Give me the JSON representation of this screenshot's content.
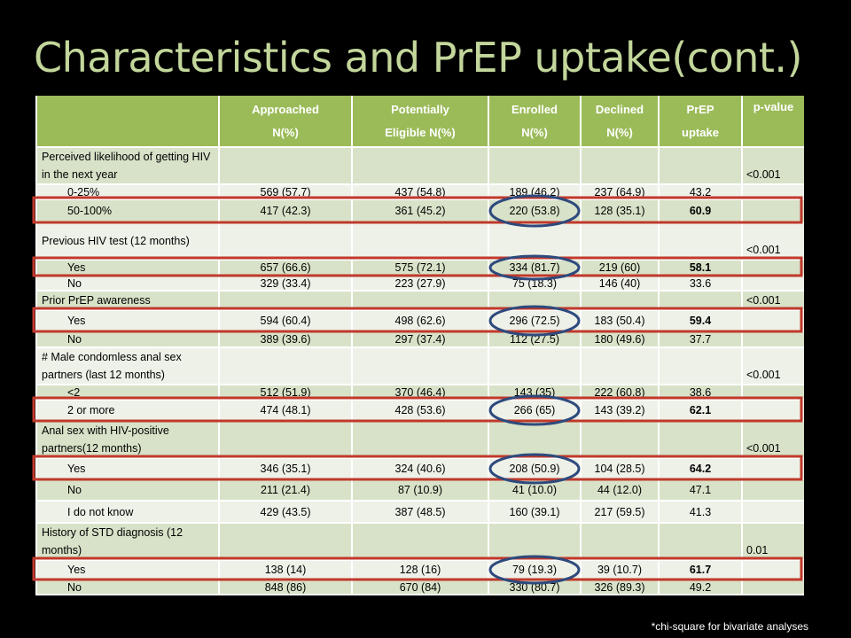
{
  "title": "Characteristics and PrEP uptake(cont.)",
  "footnote": "*chi-square for bivariate analyses",
  "table": {
    "headers": [
      {
        "line1": "",
        "line2": ""
      },
      {
        "line1": "Approached",
        "line2": "N(%)"
      },
      {
        "line1": "Potentially",
        "line2": "Eligible N(%)"
      },
      {
        "line1": "Enrolled",
        "line2": "N(%)"
      },
      {
        "line1": "Declined",
        "line2": "N(%)"
      },
      {
        "line1": "PrEP",
        "line2": "uptake"
      },
      {
        "line1": "p-value",
        "line2": ""
      }
    ],
    "rows": [
      {
        "type": "section",
        "label": "Perceived likelihood of getting HIV in the next year",
        "pvalue": "<0.001"
      },
      {
        "type": "data",
        "label": "0-25%",
        "approached": "569 (57.7)",
        "eligible": "437 (54.8)",
        "enrolled": "189 (46.2)",
        "declined": "237 (64.9)",
        "uptake": "43.2",
        "highlight": false
      },
      {
        "type": "data",
        "label": "50-100%",
        "approached": "417 (42.3)",
        "eligible": "361 (45.2)",
        "enrolled": "220 (53.8)",
        "declined": "128 (35.1)",
        "uptake": "60.9",
        "highlight": true
      },
      {
        "type": "section",
        "label": "Previous HIV test (12 months)",
        "pvalue": "<0.001"
      },
      {
        "type": "data",
        "label": "Yes",
        "approached": "657 (66.6)",
        "eligible": "575 (72.1)",
        "enrolled": "334 (81.7)",
        "declined": "219 (60)",
        "uptake": "58.1",
        "highlight": true
      },
      {
        "type": "data",
        "label": "No",
        "approached": "329 (33.4)",
        "eligible": "223 (27.9)",
        "enrolled": "75 (18.3)",
        "declined": "146 (40)",
        "uptake": "33.6",
        "highlight": false
      },
      {
        "type": "section",
        "label": "Prior PrEP awareness",
        "pvalue": "<0.001"
      },
      {
        "type": "data",
        "label": "Yes",
        "approached": "594 (60.4)",
        "eligible": "498 (62.6)",
        "enrolled": "296 (72.5)",
        "declined": "183 (50.4)",
        "uptake": "59.4",
        "highlight": true
      },
      {
        "type": "data",
        "label": "No",
        "approached": "389 (39.6)",
        "eligible": "297 (37.4)",
        "enrolled": "112 (27.5)",
        "declined": "180 (49.6)",
        "uptake": "37.7",
        "highlight": false
      },
      {
        "type": "section",
        "label": "# Male condomless anal sex partners (last 12 months)",
        "pvalue": "<0.001"
      },
      {
        "type": "data",
        "label": "<2",
        "approached": "512 (51.9)",
        "eligible": "370 (46.4)",
        "enrolled": "143 (35)",
        "declined": "222 (60.8)",
        "uptake": "38.6",
        "highlight": false
      },
      {
        "type": "data",
        "label": "2 or more",
        "approached": "474 (48.1)",
        "eligible": "428 (53.6)",
        "enrolled": "266 (65)",
        "declined": "143 (39.2)",
        "uptake": "62.1",
        "highlight": true
      },
      {
        "type": "section",
        "label": "Anal sex with HIV-positive partners(12 months)",
        "pvalue": "<0.001"
      },
      {
        "type": "data",
        "label": "Yes",
        "approached": "346 (35.1)",
        "eligible": "324 (40.6)",
        "enrolled": "208 (50.9)",
        "declined": "104 (28.5)",
        "uptake": "64.2",
        "highlight": true
      },
      {
        "type": "data",
        "label": "No",
        "approached": "211 (21.4)",
        "eligible": "87 (10.9)",
        "enrolled": "41 (10.0)",
        "declined": "44 (12.0)",
        "uptake": "47.1",
        "highlight": false
      },
      {
        "type": "data",
        "label": "I do not know",
        "approached": "429 (43.5)",
        "eligible": "387 (48.5)",
        "enrolled": "160 (39.1)",
        "declined": "217 (59.5)",
        "uptake": "41.3",
        "highlight": false
      },
      {
        "type": "section",
        "label": "History of STD diagnosis (12 months)",
        "pvalue": "0.01"
      },
      {
        "type": "data",
        "label": "Yes",
        "approached": "138 (14)",
        "eligible": "128 (16)",
        "enrolled": "79 (19.3)",
        "declined": "39 (10.7)",
        "uptake": "61.7",
        "highlight": true
      },
      {
        "type": "data",
        "label": "No",
        "approached": "848 (86)",
        "eligible": "670 (84)",
        "enrolled": "330 (80.7)",
        "declined": "326 (89.3)",
        "uptake": "49.2",
        "highlight": false
      }
    ]
  },
  "colors": {
    "title": "#c3d69b",
    "header_bg": "#9bbb59",
    "band_bg": "#d8e2c8",
    "light_bg": "#eef1e8",
    "highlight_rect": "#c0392b",
    "highlight_ellipse": "#2e4a7d"
  }
}
